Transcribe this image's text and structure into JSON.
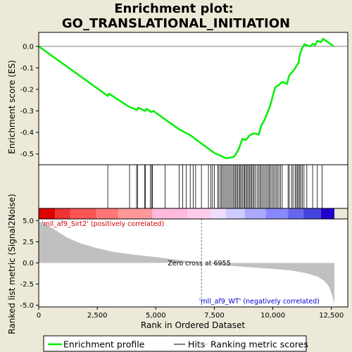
{
  "chart_data": {
    "type": "line",
    "title_line1": "Enrichment plot:",
    "title_line2": "GO_TRANSLATIONAL_INITIATION",
    "top_panel": {
      "ylabel": "Enrichment score (ES)",
      "ylim": [
        -0.55,
        0.065
      ],
      "yticks": [
        0.0,
        -0.1,
        -0.2,
        -0.3,
        -0.4,
        -0.5
      ],
      "ytick_labels": [
        "0.0",
        "-0.1",
        "-0.2",
        "-0.3",
        "-0.4",
        "-0.5"
      ],
      "series": {
        "name": "Enrichment profile",
        "color": "#00ee00",
        "points": [
          [
            0,
            0.0
          ],
          [
            2950,
            -0.23
          ],
          [
            3000,
            -0.22
          ],
          [
            3850,
            -0.28
          ],
          [
            4200,
            -0.295
          ],
          [
            4250,
            -0.285
          ],
          [
            4550,
            -0.3
          ],
          [
            4620,
            -0.29
          ],
          [
            4800,
            -0.305
          ],
          [
            4900,
            -0.3
          ],
          [
            5400,
            -0.34
          ],
          [
            6000,
            -0.385
          ],
          [
            6500,
            -0.415
          ],
          [
            7000,
            -0.455
          ],
          [
            7500,
            -0.495
          ],
          [
            7900,
            -0.515
          ],
          [
            8000,
            -0.52
          ],
          [
            8300,
            -0.515
          ],
          [
            8400,
            -0.505
          ],
          [
            8550,
            -0.475
          ],
          [
            8700,
            -0.43
          ],
          [
            8850,
            -0.435
          ],
          [
            9000,
            -0.415
          ],
          [
            9150,
            -0.405
          ],
          [
            9250,
            -0.405
          ],
          [
            9400,
            -0.41
          ],
          [
            9500,
            -0.37
          ],
          [
            9650,
            -0.34
          ],
          [
            9800,
            -0.3
          ],
          [
            9900,
            -0.27
          ],
          [
            10000,
            -0.23
          ],
          [
            10100,
            -0.19
          ],
          [
            10250,
            -0.18
          ],
          [
            10400,
            -0.165
          ],
          [
            10600,
            -0.175
          ],
          [
            10700,
            -0.135
          ],
          [
            10900,
            -0.11
          ],
          [
            11100,
            -0.075
          ],
          [
            11150,
            -0.04
          ],
          [
            11250,
            -0.01
          ],
          [
            11350,
            0.01
          ],
          [
            11450,
            0.005
          ],
          [
            11600,
            0.0
          ],
          [
            11700,
            0.012
          ],
          [
            11800,
            0.005
          ],
          [
            11900,
            0.025
          ],
          [
            12050,
            0.02
          ],
          [
            12150,
            0.035
          ],
          [
            12350,
            0.02
          ],
          [
            12600,
            0.0
          ]
        ]
      }
    },
    "hits": [
      2950,
      3880,
      4180,
      4220,
      4530,
      4560,
      4770,
      4830,
      4860,
      5400,
      6000,
      6150,
      6300,
      6470,
      6600,
      6700,
      6950,
      7250,
      7350,
      7420,
      7500,
      7650,
      7700,
      7780,
      7820,
      7880,
      7940,
      8000,
      8060,
      8120,
      8180,
      8240,
      8300,
      8350,
      8400,
      8450,
      8500,
      8560,
      8600,
      8650,
      8700,
      8760,
      8800,
      8850,
      8900,
      8950,
      9000,
      9050,
      9100,
      9150,
      9200,
      9260,
      9330,
      9400,
      9450,
      9500,
      9560,
      9620,
      9680,
      9740,
      9800,
      9850,
      9900,
      9960,
      10020,
      10080,
      10140,
      10200,
      10260,
      10330,
      10400,
      10650,
      10700,
      10800,
      10860,
      10950,
      11000,
      11050,
      11100,
      11150,
      11200,
      11260,
      11330,
      11450,
      11700,
      11900,
      12100
    ],
    "bottom_panel": {
      "ylabel": "Ranked list metric (Signal2Noise)",
      "ylim": [
        -5.2,
        5.2
      ],
      "yticks": [
        5.0,
        2.5,
        0.0,
        -2.5,
        -5.0
      ],
      "ytick_labels": [
        "5.0",
        "2.5",
        "0.0",
        "-2.5",
        "-5.0"
      ],
      "metric_points": [
        [
          0,
          4.9
        ],
        [
          300,
          4.6
        ],
        [
          700,
          3.9
        ],
        [
          1200,
          3.0
        ],
        [
          1800,
          2.3
        ],
        [
          2500,
          1.75
        ],
        [
          3200,
          1.3
        ],
        [
          4000,
          1.0
        ],
        [
          5000,
          0.7
        ],
        [
          6000,
          0.35
        ],
        [
          6955,
          0.0
        ],
        [
          8000,
          -0.3
        ],
        [
          9000,
          -0.5
        ],
        [
          10000,
          -0.7
        ],
        [
          10800,
          -0.9
        ],
        [
          11400,
          -1.2
        ],
        [
          11900,
          -1.6
        ],
        [
          12200,
          -2.1
        ],
        [
          12400,
          -2.8
        ],
        [
          12550,
          -4.0
        ],
        [
          12630,
          -4.9
        ]
      ],
      "fill_color": "#c0c0c0",
      "zero_cross_label": "Zero cross at 6955",
      "zero_cross_x": 6955,
      "positive_label": "'mll_af9_Sirt2' (positively correlated)",
      "positive_color": "#cc0000",
      "negative_label": "'mll_af9_WT' (negatively correlated)",
      "negative_color": "#0000cc"
    },
    "xlabel": "Rank in Ordered Dataset",
    "xlim": [
      0,
      13200
    ],
    "xticks": [
      0,
      2500,
      5000,
      7500,
      10000,
      12500
    ],
    "xtick_labels": [
      "0",
      "2,500",
      "5,000",
      "7,500",
      "10,000",
      "12,500"
    ],
    "heatmap_segments": [
      {
        "x0": 0,
        "x1": 700,
        "color": "#dd0000"
      },
      {
        "x0": 700,
        "x1": 1350,
        "color": "#ee3333"
      },
      {
        "x0": 1350,
        "x1": 2450,
        "color": "#ff5555"
      },
      {
        "x0": 2450,
        "x1": 3400,
        "color": "#ff7777"
      },
      {
        "x0": 3400,
        "x1": 4850,
        "color": "#ff9999"
      },
      {
        "x0": 4850,
        "x1": 6350,
        "color": "#ffbbdd"
      },
      {
        "x0": 6350,
        "x1": 7350,
        "color": "#ffccee"
      },
      {
        "x0": 7350,
        "x1": 8000,
        "color": "#eeddff"
      },
      {
        "x0": 8000,
        "x1": 8800,
        "color": "#ccccff"
      },
      {
        "x0": 8800,
        "x1": 9700,
        "color": "#aaaaff"
      },
      {
        "x0": 9700,
        "x1": 10650,
        "color": "#8888ff"
      },
      {
        "x0": 10650,
        "x1": 11300,
        "color": "#6666ee"
      },
      {
        "x0": 11300,
        "x1": 12050,
        "color": "#4444dd"
      },
      {
        "x0": 12050,
        "x1": 12630,
        "color": "#2200cc"
      }
    ],
    "legend": [
      {
        "label": "Enrichment profile",
        "color": "#00ee00",
        "kind": "thick"
      },
      {
        "label": "Hits",
        "color": "#000000",
        "kind": "thin"
      },
      {
        "label": "Ranking metric scores",
        "color": "#c0c0c0",
        "kind": "thin"
      }
    ]
  }
}
